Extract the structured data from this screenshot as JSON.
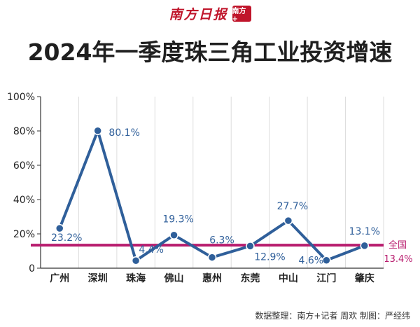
{
  "masthead": {
    "name": "南方日报",
    "seal_text": "南方+"
  },
  "title": "2024年一季度珠三角工业投资增速",
  "credit": "数据整理：南方+记者 周欢  制图：严经纬",
  "colors": {
    "line": "#2f5f9a",
    "reference": "#b81c6e",
    "grid": "#dcdcdc",
    "axis": "#333333",
    "brand": "#c0152b"
  },
  "chart_data": {
    "type": "line",
    "title": "2024年一季度珠三角工业投资增速",
    "categories": [
      "广州",
      "深圳",
      "珠海",
      "佛山",
      "惠州",
      "东莞",
      "中山",
      "江门",
      "肇庆"
    ],
    "series": [
      {
        "values": [
          23.2,
          80.1,
          4.4,
          19.3,
          6.3,
          12.9,
          27.7,
          4.6,
          13.1
        ],
        "labels": [
          "23.2%",
          "80.1%",
          "4.4%",
          "19.3%",
          "6.3%",
          "12.9%",
          "27.7%",
          "4.6%",
          "13.1%"
        ]
      }
    ],
    "reference_line": {
      "value": 13.4,
      "name": "全国",
      "label": "13.4%"
    },
    "y_ticks": [
      0,
      20,
      40,
      60,
      80,
      100
    ],
    "y_tick_labels": [
      "0",
      "20%",
      "40%",
      "60%",
      "80%",
      "100%"
    ],
    "ylim": [
      0,
      100
    ],
    "xlabel": "",
    "ylabel": "",
    "grid": "vertical",
    "legend": "none"
  }
}
